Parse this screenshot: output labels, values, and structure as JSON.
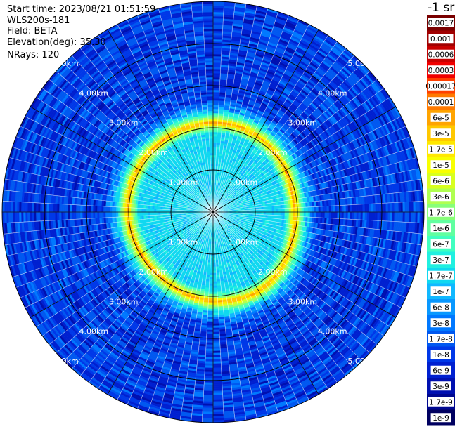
{
  "info": {
    "start_time": "Start time: 2023/08/21 01:51:59",
    "instrument": "WLS200s-181",
    "field": "Field: BETA",
    "elevation": "Elevation(deg): 35.30",
    "nrays": "NRays: 120"
  },
  "colorbar": {
    "unit_label": "-1 sr",
    "labels": [
      "0.0017",
      "0.001",
      "0.0006",
      "0.0003",
      "0.00017",
      "0.0001",
      "6e-5",
      "3e-5",
      "1.7e-5",
      "1e-5",
      "6e-6",
      "3e-6",
      "1.7e-6",
      "1e-6",
      "6e-7",
      "3e-7",
      "1.7e-7",
      "1e-7",
      "6e-8",
      "3e-8",
      "1.7e-8",
      "1e-8",
      "6e-9",
      "3e-9",
      "1.7e-9",
      "1e-9"
    ],
    "colors": [
      "#7a0000",
      "#a00000",
      "#c80000",
      "#f00000",
      "#ff4000",
      "#ff7a00",
      "#ffa400",
      "#ffc800",
      "#ffe800",
      "#f8ff00",
      "#d8ff20",
      "#b0ff50",
      "#88ff78",
      "#60ffa0",
      "#40ffc0",
      "#20f0e0",
      "#10d8f0",
      "#10b8ff",
      "#0898ff",
      "#0078ff",
      "#0058f0",
      "#0038e8",
      "#0020d0",
      "#0010b0",
      "#000890",
      "#000060"
    ]
  },
  "chart_data": {
    "type": "polar-ppi",
    "field": "BETA",
    "nrays": 120,
    "elevation_deg": 35.3,
    "unit": "sr-1",
    "range_rings_km": [
      1.0,
      2.0,
      3.0,
      4.0,
      5.0
    ],
    "ring_labels": [
      "1.00km",
      "2.00km",
      "3.00km",
      "4.00km",
      "5.00km"
    ],
    "max_range_km": 5.0,
    "radial_profile": [
      {
        "range_km": 0.0,
        "value": 1.7e-07
      },
      {
        "range_km": 1.0,
        "value": 1.7e-07
      },
      {
        "range_km": 1.8,
        "value": 1.7e-07
      },
      {
        "range_km": 1.95,
        "value": 3e-06
      },
      {
        "range_km": 2.05,
        "value": 6e-05
      },
      {
        "range_km": 2.15,
        "value": 3e-06
      },
      {
        "range_km": 2.3,
        "value": 1.7e-07
      },
      {
        "range_km": 2.6,
        "value": 1e-08
      },
      {
        "range_km": 5.0,
        "value": 1e-08
      }
    ]
  }
}
